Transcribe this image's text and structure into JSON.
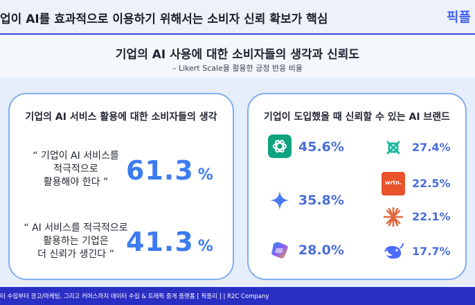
{
  "header": {
    "headline": "업이 AI를 효과적으로 이용하기 위해서는 소비자 신뢰 확보가 핵심",
    "logo": "픽플"
  },
  "hero": {
    "title": "기업의 AI 사용에 대한 소비자들의 생각과 신뢰도",
    "subtitle": "– Likert Scale을 활용한 긍정 반응 비율"
  },
  "left_panel": {
    "title": "기업의 AI 서비스 활용에 대한 소비자들의 생각",
    "items": [
      {
        "quote": [
          "“ 기업이 AI 서비스를",
          "적극적으로",
          "활용해야 한다 ”"
        ],
        "value": "61.3",
        "unit": "%"
      },
      {
        "quote": [
          "“ AI 서비스를 적극적으로",
          "활용하는 기업은",
          "더 신뢰가 생긴다 ”"
        ],
        "value": "41.3",
        "unit": "%"
      }
    ]
  },
  "right_panel": {
    "title": "기업이 도입했을 때 신뢰할 수 있는 AI 브랜드",
    "brands": [
      {
        "icon": "chatgpt-logo-icon",
        "value": "45.6%",
        "color": "#10a37f"
      },
      {
        "icon": "perplexity-logo-icon",
        "value": "27.4%",
        "color": "#20b8a0"
      },
      {
        "icon": "wrtn-logo-icon",
        "value": "22.5%",
        "label": "wrtn.",
        "color": "#e8532b"
      },
      {
        "icon": "gemini-logo-icon",
        "value": "35.8%",
        "color": "#4b7bf0"
      },
      {
        "icon": "claude-logo-icon",
        "value": "22.1%",
        "color": "#e06a3f"
      },
      {
        "icon": "copilot-logo-icon",
        "value": "28.0%",
        "color": "#7a5af5"
      },
      {
        "icon": "deepseek-logo-icon",
        "value": "17.7%",
        "color": "#4d6bfe"
      }
    ]
  },
  "footer": {
    "text": "터 수집부터 광고/마케팅, 그리고 커머스까지 데이터 수집 & 트래픽 중개 플랫폼 [ 픽플리 ]  |  R2C Company"
  }
}
